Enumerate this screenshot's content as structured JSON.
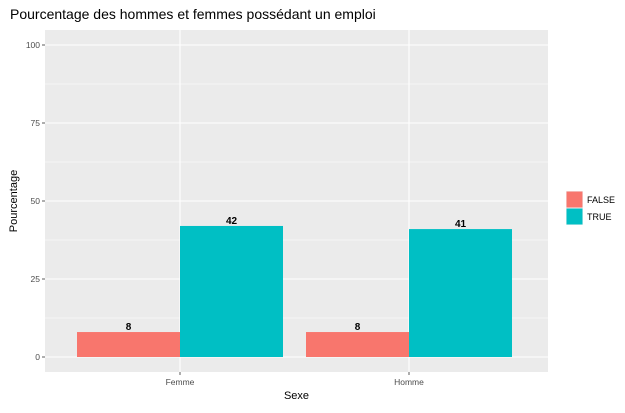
{
  "chart_data": {
    "type": "bar",
    "title": "Pourcentage des hommes et femmes possédant un emploi",
    "xlabel": "Sexe",
    "ylabel": "Pourcentage",
    "categories": [
      "Femme",
      "Homme"
    ],
    "series": [
      {
        "name": "FALSE",
        "values": [
          8,
          8
        ],
        "color": "#F8766D"
      },
      {
        "name": "TRUE",
        "values": [
          42,
          41
        ],
        "color": "#00BFC4"
      }
    ],
    "ylim": [
      0,
      100
    ],
    "yticks": [
      0,
      25,
      50,
      75,
      100
    ],
    "grid": true,
    "legend_position": "right",
    "panel_background": "#EBEBEB",
    "gridline_color": "#FFFFFF"
  }
}
